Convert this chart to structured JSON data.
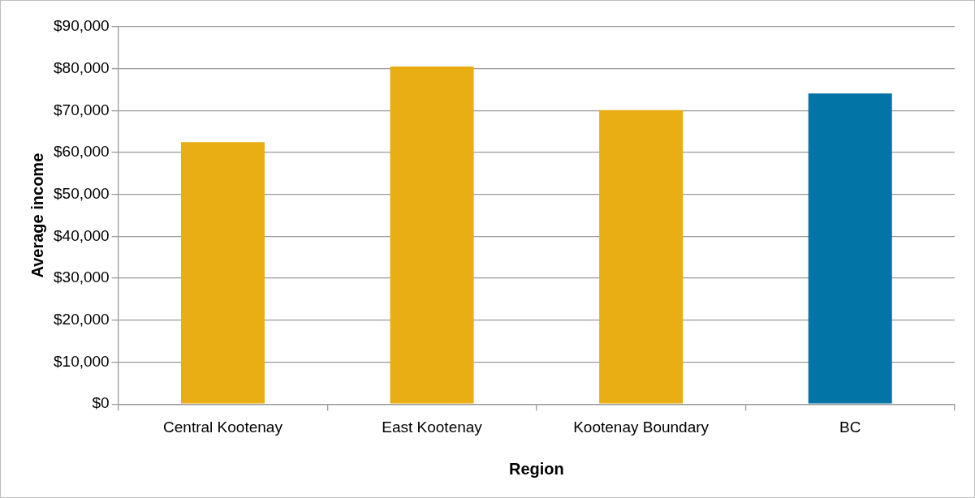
{
  "chart_data": {
    "type": "bar",
    "xlabel": "Region",
    "ylabel": "Average income",
    "categories": [
      "Central Kootenay",
      "East Kootenay",
      "Kootenay Boundary",
      "BC"
    ],
    "values": [
      62500,
      80500,
      70100,
      74100
    ],
    "colors": [
      "#e8ae13",
      "#e8ae13",
      "#e8ae13",
      "#0274a5"
    ],
    "ylim": [
      0,
      90000
    ],
    "yticks": [
      {
        "value": 0,
        "label": "$0"
      },
      {
        "value": 10000,
        "label": "$10,000"
      },
      {
        "value": 20000,
        "label": "$20,000"
      },
      {
        "value": 30000,
        "label": "$30,000"
      },
      {
        "value": 40000,
        "label": "$40,000"
      },
      {
        "value": 50000,
        "label": "$50,000"
      },
      {
        "value": 60000,
        "label": "$60,000"
      },
      {
        "value": 70000,
        "label": "$70,000"
      },
      {
        "value": 80000,
        "label": "$80,000"
      },
      {
        "value": 90000,
        "label": "$90,000"
      }
    ],
    "grid": "y",
    "legend": false
  }
}
